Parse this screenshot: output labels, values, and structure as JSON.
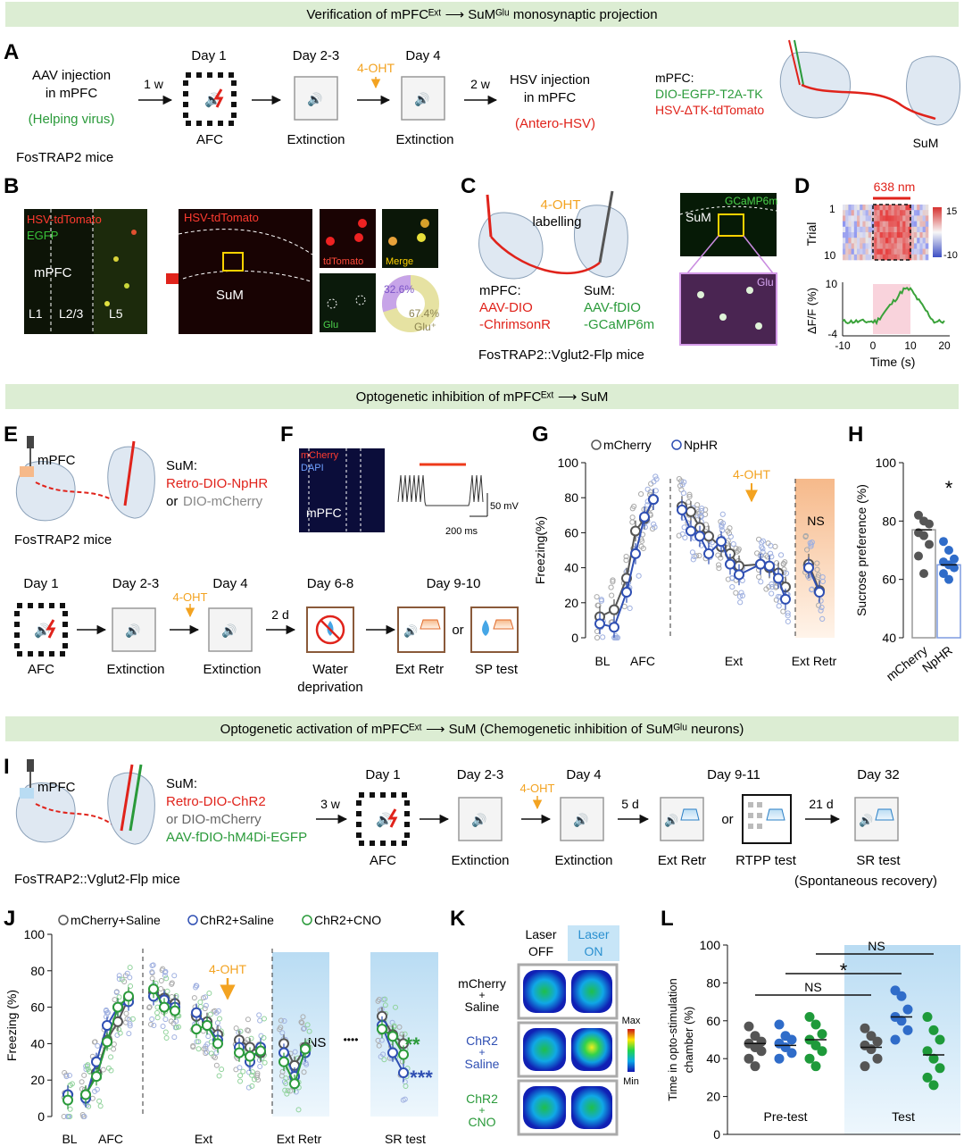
{
  "banners": {
    "b1": "Verification of mPFCᴱˣᵗ ⟶ SuMᴳˡᵘ monosynaptic projection",
    "b2": "Optogenetic inhibition of mPFCᴱˣᵗ ⟶ SuM",
    "b3": "Optogenetic activation of mPFCᴱˣᵗ ⟶ SuM (Chemogenetic inhibition of SuMᴳˡᵘ neurons)"
  },
  "panelA": {
    "letter": "A",
    "aav_line1": "AAV injection",
    "aav_line2": "in mPFC",
    "helping": "(Helping virus)",
    "mice": "FosTRAP2 mice",
    "wk1": "1 w",
    "day1": "Day 1",
    "day23": "Day 2-3",
    "day4": "Day 4",
    "afc": "AFC",
    "ext1": "Extinction",
    "ext2": "Extinction",
    "ohtA": "4-OHT",
    "wk2": "2 w",
    "hsv1": "HSV injection",
    "hsv2": "in mPFC",
    "antero": "(Antero-HSV)",
    "mpfc_label": "mPFC:",
    "dio": "DIO-EGFP-T2A-TK",
    "hsvtk": "HSV-ΔTK-tdTomato",
    "sum": "SuM"
  },
  "panelB": {
    "letter": "B",
    "hsv": "HSV-tdTomato",
    "egfp": "EGFP",
    "mpfc": "mPFC",
    "l1": "L1",
    "l23": "L2/3",
    "l5": "L5",
    "hsv2": "HSV-tdTomato",
    "sum": "SuM",
    "tdtomato": "tdTomato",
    "merge": "Merge",
    "glu": "Glu",
    "pct1": "32.6%",
    "pct2": "67.4%",
    "glup": "Glu⁺"
  },
  "panelC": {
    "letter": "C",
    "oht": "4-OHT",
    "labelling": "labelling",
    "mpfc": "mPFC:",
    "aav1": "AAV-DIO",
    "aav2": "-ChrimsonR",
    "sum": "SuM:",
    "fdio1": "AAV-fDIO",
    "fdio2": "-GCaMP6m",
    "mice": "FosTRAP2::Vglut2-Flp mice",
    "gcamp": "GCaMP6m",
    "sum2": "SuM",
    "glu": "Glu"
  },
  "panelD": {
    "letter": "D",
    "nm": "638 nm",
    "trial": "Trial",
    "t1": "1",
    "t10": "10",
    "c15": "15",
    "cm10": "-10",
    "ylabel": "ΔF/F (%)",
    "y10": "10",
    "ym4": "-4",
    "xlabel": "Time (s)",
    "xt": [
      "-10",
      "0",
      "10",
      "20"
    ]
  },
  "panelE": {
    "letter": "E",
    "mpfc": "mPFC",
    "sum": "SuM:",
    "npHR": "Retro-DIO-NpHR",
    "or": "or",
    "mch": "DIO-mCherry",
    "mice": "FosTRAP2 mice",
    "days": [
      "Day 1",
      "Day 2-3",
      "Day 4",
      "Day 6-8",
      "Day 9-10"
    ],
    "oht": "4-OHT",
    "d2": "2 d",
    "labs": [
      "AFC",
      "Extinction",
      "Extinction",
      "Water",
      "Ext Retr",
      "SP test"
    ],
    "deprivation": "deprivation",
    "or2": "or"
  },
  "panelF": {
    "letter": "F",
    "mcherry": "mCherry",
    "dapi": "DAPI",
    "mpfc": "mPFC",
    "mv": "50 mV",
    "ms": "200 ms"
  },
  "panelG": {
    "letter": "G",
    "leg1": "mCherry",
    "leg2": "NpHR",
    "ylabel": "Freezing(%)",
    "yt": [
      "0",
      "20",
      "40",
      "60",
      "80",
      "100"
    ],
    "oht": "4-OHT",
    "ns": "NS",
    "xl": [
      "BL",
      "AFC",
      "Ext",
      "Ext Retr"
    ]
  },
  "panelH": {
    "letter": "H",
    "ylabel": "Sucrose preference (%)",
    "yt": [
      "40",
      "60",
      "80",
      "100"
    ],
    "star": "*",
    "xl": [
      "mCherry",
      "NpHR"
    ]
  },
  "panelI": {
    "letter": "I",
    "mpfc": "mPFC",
    "sum": "SuM:",
    "chr2": "Retro-DIO-ChR2",
    "or": "or DIO-mCherry",
    "hm4": "AAV-fDIO-hM4Di-EGFP",
    "mice": "FosTRAP2::Vglut2-Flp mice",
    "w3": "3 w",
    "days": [
      "Day 1",
      "Day 2-3",
      "Day 4",
      "Day 9-11",
      "Day 32"
    ],
    "oht": "4-OHT",
    "d5": "5 d",
    "d21": "21 d",
    "or2": "or",
    "labs": [
      "AFC",
      "Extinction",
      "Extinction",
      "Ext Retr",
      "RTPP test",
      "SR test"
    ],
    "spont": "(Spontaneous recovery)"
  },
  "panelJ": {
    "letter": "J",
    "leg1": "mCherry+Saline",
    "leg2": "ChR2+Saline",
    "leg3": "ChR2+CNO",
    "ylabel": "Freezing (%)",
    "yt": [
      "0",
      "20",
      "40",
      "60",
      "80",
      "100"
    ],
    "oht": "4-OHT",
    "ns": "NS",
    "dots": "••••",
    "s2": "**",
    "s3": "***",
    "xl": [
      "BL",
      "AFC",
      "Ext",
      "Ext Retr",
      "SR test"
    ]
  },
  "panelK": {
    "letter": "K",
    "off1": "Laser",
    "off2": "OFF",
    "on1": "Laser",
    "on2": "ON",
    "r1": [
      "mCherry",
      "+",
      "Saline"
    ],
    "r2": [
      "ChR2",
      "+",
      "Saline"
    ],
    "r3": [
      "ChR2",
      "+",
      "CNO"
    ],
    "max": "Max",
    "min": "Min"
  },
  "panelL": {
    "letter": "L",
    "ylabel1": "Time  in opto-stimulation",
    "ylabel2": "chamber (%)",
    "yt": [
      "0",
      "20",
      "40",
      "60",
      "80",
      "100"
    ],
    "ns1": "NS",
    "ns2": "NS",
    "star": "*",
    "xl": [
      "Pre-test",
      "Test"
    ]
  },
  "chart_data": [
    {
      "panel": "G",
      "type": "line",
      "ylabel": "Freezing(%)",
      "ylim": [
        0,
        100
      ],
      "series": [
        {
          "name": "mCherry",
          "values": [
            12,
            16,
            34,
            61,
            68,
            79,
            75,
            72,
            63,
            58,
            52,
            48,
            41,
            42,
            40,
            37,
            29,
            42,
            27
          ]
        },
        {
          "name": "NpHR",
          "values": [
            8,
            6,
            26,
            48,
            69,
            79,
            73,
            61,
            58,
            48,
            55,
            42,
            36,
            42,
            41,
            34,
            22,
            40,
            26
          ]
        }
      ]
    },
    {
      "panel": "H",
      "type": "bar",
      "categories": [
        "mCherry",
        "NpHR"
      ],
      "values": [
        77,
        65
      ],
      "ylabel": "Sucrose preference (%)",
      "ylim": [
        40,
        100
      ]
    },
    {
      "panel": "J",
      "type": "line",
      "ylabel": "Freezing (%)",
      "ylim": [
        0,
        100
      ],
      "series": [
        {
          "name": "mCherry+Saline",
          "values": [
            12,
            12,
            24,
            42,
            52,
            65,
            68,
            65,
            62,
            55,
            52,
            45,
            42,
            38,
            35,
            40,
            28,
            38,
            33,
            26,
            55,
            45,
            40
          ]
        },
        {
          "name": "ChR2+Saline",
          "values": [
            12,
            10,
            30,
            50,
            60,
            63,
            66,
            64,
            60,
            57,
            50,
            42,
            38,
            30,
            38,
            35,
            22,
            35,
            30,
            24,
            50,
            35,
            24
          ]
        },
        {
          "name": "ChR2+CNO",
          "values": [
            9,
            12,
            22,
            41,
            60,
            66,
            70,
            60,
            58,
            48,
            50,
            40,
            35,
            33,
            36,
            30,
            18,
            37,
            32,
            23,
            48,
            44,
            34
          ]
        }
      ]
    },
    {
      "panel": "L",
      "type": "scatter",
      "categories": [
        "Pre-test",
        "Test"
      ],
      "ylim": [
        0,
        100
      ],
      "series": [
        {
          "name": "mCherry+Saline",
          "values": [
            48,
            46
          ]
        },
        {
          "name": "ChR2+Saline",
          "values": [
            47,
            62
          ]
        },
        {
          "name": "ChR2+CNO",
          "values": [
            50,
            42
          ]
        }
      ]
    }
  ],
  "colors": {
    "banner": "#dcedd3",
    "red": "#e0231b",
    "green": "#2a9a3a",
    "blue": "#2f4fb3",
    "orange": "#f3a321",
    "gray": "#555555"
  }
}
